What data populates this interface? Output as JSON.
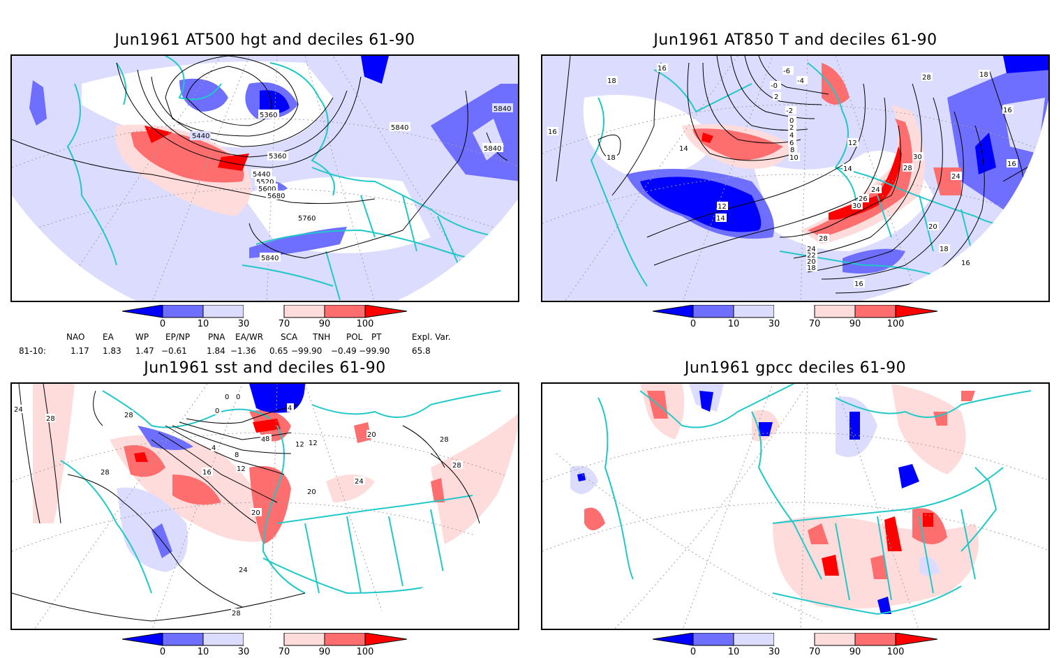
{
  "panels": [
    {
      "id": "at500",
      "title": "Jun1961 AT500 hgt and deciles 61-90",
      "contour_labels": [
        "5360",
        "5440",
        "5360",
        "5440",
        "5520",
        "5600",
        "5680",
        "5760",
        "5840",
        "5840",
        "5840",
        "5840"
      ]
    },
    {
      "id": "at850",
      "title": "Jun1961 AT850 T and deciles 61-90",
      "contour_labels": [
        "16",
        "18",
        "16",
        "18",
        "-6",
        "-4",
        "-0",
        "2",
        "-2",
        "0",
        "2",
        "4",
        "6",
        "8",
        "10",
        "12",
        "14",
        "14",
        "12",
        "14",
        "24",
        "26",
        "30",
        "28",
        "24",
        "22",
        "20",
        "18",
        "16",
        "30",
        "28",
        "24",
        "16",
        "20",
        "18",
        "18",
        "16",
        "28",
        "16"
      ]
    },
    {
      "id": "sst",
      "title": "Jun1961 sst and deciles 61-90",
      "contour_labels": [
        "24",
        "28",
        "28",
        "28",
        "0",
        "0",
        "0",
        "4",
        "4",
        "8",
        "12",
        "16",
        "4",
        "8",
        "12",
        "12",
        "20",
        "20",
        "20",
        "24",
        "28",
        "28",
        "24",
        "28"
      ]
    },
    {
      "id": "gpcc",
      "title": "Jun1961 gpcc deciles 61-90",
      "contour_labels": []
    }
  ],
  "colorbar": {
    "ticks": [
      "0",
      "10",
      "30",
      "70",
      "90",
      "100"
    ],
    "colors": [
      "#0000ff",
      "#6e6eff",
      "#dcdcff",
      "#ffffff",
      "#ffdcdc",
      "#ff6e6e",
      "#ff0000"
    ]
  },
  "index_table": {
    "headers": [
      "NAO",
      "EA",
      "WP",
      "EP/NP",
      "PNA",
      "EA/WR",
      "SCA",
      "TNH",
      "POL",
      "PT",
      "Expl. Var."
    ],
    "row_label": "81-10:",
    "values": [
      "1.17",
      "1.83",
      "1.47",
      "−0.61",
      "1.84",
      "−1.36",
      "0.65",
      "−99.90",
      "−0.49",
      "−99.90",
      "65.8"
    ]
  },
  "colors": {
    "coast": "#20c8c8",
    "contour": "#000000",
    "grid": "#a0a0a0",
    "dark_blue": "#0000ff",
    "mid_blue": "#6e6eff",
    "light_blue": "#dcdcff",
    "light_red": "#ffdcdc",
    "mid_red": "#ff6e6e",
    "dark_red": "#ff0000"
  }
}
